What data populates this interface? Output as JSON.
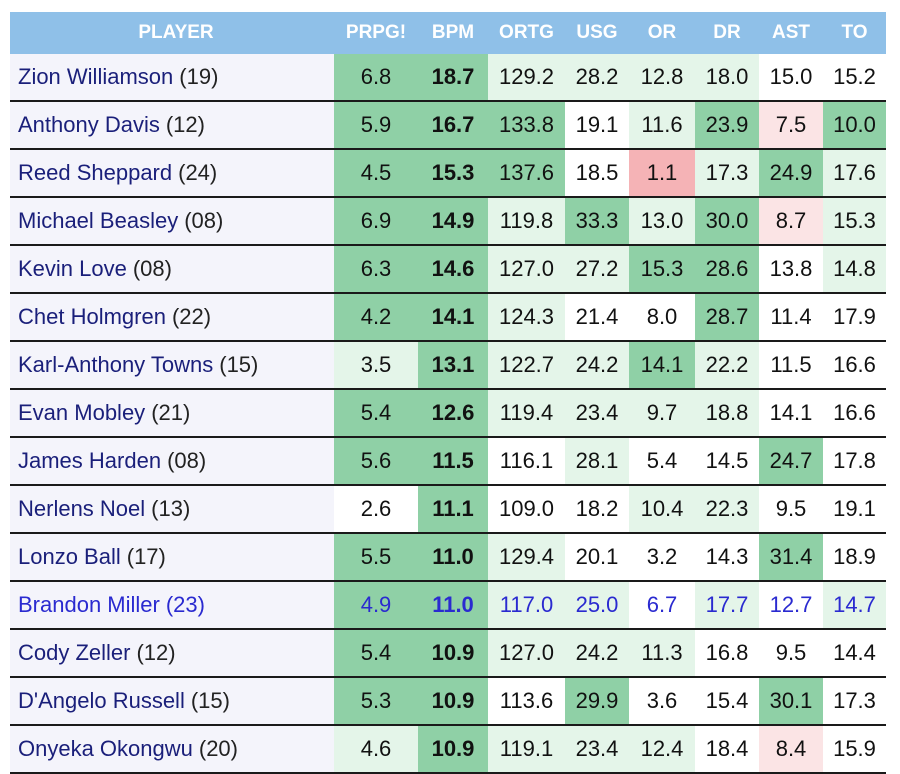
{
  "headers": [
    "PLAYER",
    "PRPG!",
    "BPM",
    "ORTG",
    "USG",
    "OR",
    "DR",
    "AST",
    "TO"
  ],
  "rows": [
    {
      "name": "Zion Williamson",
      "yr": "(19)",
      "v": [
        "6.8",
        "18.7",
        "129.2",
        "28.2",
        "12.8",
        "18.0",
        "15.0",
        "15.2"
      ]
    },
    {
      "name": "Anthony Davis",
      "yr": "(12)",
      "v": [
        "5.9",
        "16.7",
        "133.8",
        "19.1",
        "11.6",
        "23.9",
        "7.5",
        "10.0"
      ]
    },
    {
      "name": "Reed Sheppard",
      "yr": "(24)",
      "v": [
        "4.5",
        "15.3",
        "137.6",
        "18.5",
        "1.1",
        "17.3",
        "24.9",
        "17.6"
      ]
    },
    {
      "name": "Michael Beasley",
      "yr": "(08)",
      "v": [
        "6.9",
        "14.9",
        "119.8",
        "33.3",
        "13.0",
        "30.0",
        "8.7",
        "15.3"
      ]
    },
    {
      "name": "Kevin Love",
      "yr": "(08)",
      "v": [
        "6.3",
        "14.6",
        "127.0",
        "27.2",
        "15.3",
        "28.6",
        "13.8",
        "14.8"
      ]
    },
    {
      "name": "Chet Holmgren",
      "yr": "(22)",
      "v": [
        "4.2",
        "14.1",
        "124.3",
        "21.4",
        "8.0",
        "28.7",
        "11.4",
        "17.9"
      ]
    },
    {
      "name": "Karl-Anthony Towns",
      "yr": "(15)",
      "v": [
        "3.5",
        "13.1",
        "122.7",
        "24.2",
        "14.1",
        "22.2",
        "11.5",
        "16.6"
      ]
    },
    {
      "name": "Evan Mobley",
      "yr": "(21)",
      "v": [
        "5.4",
        "12.6",
        "119.4",
        "23.4",
        "9.7",
        "18.8",
        "14.1",
        "16.6"
      ]
    },
    {
      "name": "James Harden",
      "yr": "(08)",
      "v": [
        "5.6",
        "11.5",
        "116.1",
        "28.1",
        "5.4",
        "14.5",
        "24.7",
        "17.8"
      ]
    },
    {
      "name": "Nerlens Noel",
      "yr": "(13)",
      "v": [
        "2.6",
        "11.1",
        "109.0",
        "18.2",
        "10.4",
        "22.3",
        "9.5",
        "19.1"
      ]
    },
    {
      "name": "Lonzo Ball",
      "yr": "(17)",
      "v": [
        "5.5",
        "11.0",
        "129.4",
        "20.1",
        "3.2",
        "14.3",
        "31.4",
        "18.9"
      ]
    },
    {
      "name": "Brandon Miller",
      "yr": "(23)",
      "v": [
        "4.9",
        "11.0",
        "117.0",
        "25.0",
        "6.7",
        "17.7",
        "12.7",
        "14.7"
      ],
      "highlight": true
    },
    {
      "name": "Cody Zeller",
      "yr": "(12)",
      "v": [
        "5.4",
        "10.9",
        "127.0",
        "24.2",
        "11.3",
        "16.8",
        "9.5",
        "14.4"
      ]
    },
    {
      "name": "D'Angelo Russell",
      "yr": "(15)",
      "v": [
        "5.3",
        "10.9",
        "113.6",
        "29.9",
        "3.6",
        "15.4",
        "30.1",
        "17.3"
      ]
    },
    {
      "name": "Onyeka Okongwu",
      "yr": "(20)",
      "v": [
        "4.6",
        "10.9",
        "119.1",
        "23.4",
        "12.4",
        "18.4",
        "8.4",
        "15.9"
      ]
    }
  ],
  "colors": {
    "header_bg": "#8fc0e8",
    "good_strong": "#8fd0a6",
    "good_light": "#e4f5e9",
    "bad_strong": "#f5b3b6",
    "bad_light": "#fbe4e5",
    "neutral": "#ffffff"
  }
}
